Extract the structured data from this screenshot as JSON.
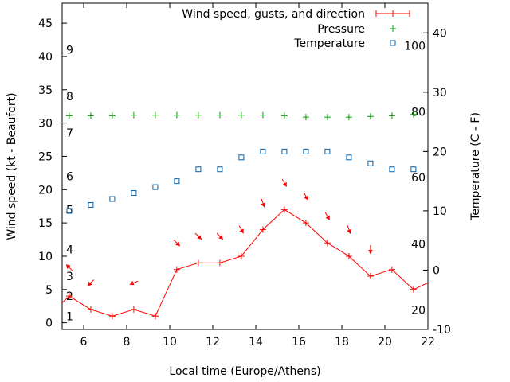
{
  "chart_data": {
    "type": "line",
    "xlabel": "Local time (Europe/Athens)",
    "ylabel_left": "Wind speed (kt - Beaufort)",
    "ylabel_right": "Temperature (C - F)",
    "x_range": [
      5,
      22
    ],
    "x_ticks": [
      6,
      8,
      10,
      12,
      14,
      16,
      18,
      20,
      22
    ],
    "y_left_range": [
      -1,
      48
    ],
    "y_left_ticks": [
      0,
      5,
      10,
      15,
      20,
      25,
      30,
      35,
      40,
      45
    ],
    "y_right_range": [
      -10,
      45
    ],
    "y_right_ticks": [
      -10,
      0,
      10,
      20,
      30,
      40
    ],
    "beaufort_labels": [
      {
        "label": "1",
        "y": 1.0
      },
      {
        "label": "2",
        "y": 4.0
      },
      {
        "label": "3",
        "y": 7.0
      },
      {
        "label": "4",
        "y": 11.0
      },
      {
        "label": "5",
        "y": 17.0
      },
      {
        "label": "6",
        "y": 22.0
      },
      {
        "label": "7",
        "y": 28.5
      },
      {
        "label": "8",
        "y": 34.0
      },
      {
        "label": "9",
        "y": 41.0
      }
    ],
    "fahrenheit_labels": [
      {
        "label": "20",
        "temp": -6.7
      },
      {
        "label": "40",
        "temp": 4.4
      },
      {
        "label": "60",
        "temp": 15.6
      },
      {
        "label": "80",
        "temp": 26.7
      },
      {
        "label": "100",
        "temp": 37.8
      }
    ],
    "legend": {
      "position": "top-right",
      "entries": [
        {
          "name": "Wind speed, gusts, and direction",
          "color": "#ff0000",
          "marker": "line-plus"
        },
        {
          "name": "Pressure",
          "color": "#00a000",
          "marker": "plus"
        },
        {
          "name": "Temperature",
          "color": "#0060ad",
          "marker": "square"
        }
      ]
    },
    "series": [
      {
        "name": "Wind speed, gusts, and direction",
        "color": "#ff0000",
        "x": [
          5,
          5.33,
          6.33,
          7.33,
          8.33,
          9.33,
          10.33,
          11.33,
          12.33,
          13.33,
          14.33,
          15.33,
          16.33,
          17.33,
          18.33,
          19.33,
          20.33,
          21.33,
          22
        ],
        "y": [
          3,
          4,
          2,
          1,
          2,
          1,
          8,
          9,
          9,
          10,
          14,
          17,
          15,
          12,
          10,
          7,
          8,
          5,
          6
        ]
      },
      {
        "name": "Pressure",
        "color": "#00a000",
        "x": [
          5.33,
          6.33,
          7.33,
          8.33,
          9.33,
          10.33,
          11.33,
          12.33,
          13.33,
          14.33,
          15.33,
          16.33,
          17.33,
          18.33,
          19.33,
          20.33,
          21.33
        ],
        "y": [
          31.1,
          31.1,
          31.1,
          31.2,
          31.2,
          31.2,
          31.2,
          31.2,
          31.2,
          31.2,
          31.1,
          30.9,
          30.9,
          30.9,
          31.0,
          31.1,
          31.3
        ]
      },
      {
        "name": "Temperature",
        "color": "#0060ad",
        "x": [
          5.33,
          6.33,
          7.33,
          8.33,
          9.33,
          10.33,
          11.33,
          12.33,
          13.33,
          14.33,
          15.33,
          16.33,
          17.33,
          18.33,
          19.33,
          20.33,
          21.33
        ],
        "y": [
          10,
          11,
          12,
          13,
          14,
          15,
          17,
          17,
          19,
          20,
          20,
          20,
          20,
          19,
          18,
          17,
          17
        ]
      }
    ],
    "wind_arrows": [
      {
        "x": 5.33,
        "y": 8.3,
        "angle": 225
      },
      {
        "x": 6.33,
        "y": 6.0,
        "angle": 315
      },
      {
        "x": 8.33,
        "y": 6.0,
        "angle": 292
      },
      {
        "x": 10.33,
        "y": 12.0,
        "angle": 45
      },
      {
        "x": 11.33,
        "y": 13.0,
        "angle": 45
      },
      {
        "x": 12.33,
        "y": 13.0,
        "angle": 45
      },
      {
        "x": 13.33,
        "y": 14.0,
        "angle": 30
      },
      {
        "x": 14.33,
        "y": 18.0,
        "angle": 20
      },
      {
        "x": 15.33,
        "y": 21.0,
        "angle": 30
      },
      {
        "x": 16.33,
        "y": 19.0,
        "angle": 30
      },
      {
        "x": 17.33,
        "y": 16.0,
        "angle": 30
      },
      {
        "x": 18.33,
        "y": 14.0,
        "angle": 20
      },
      {
        "x": 19.33,
        "y": 11.0,
        "angle": 0
      }
    ]
  }
}
